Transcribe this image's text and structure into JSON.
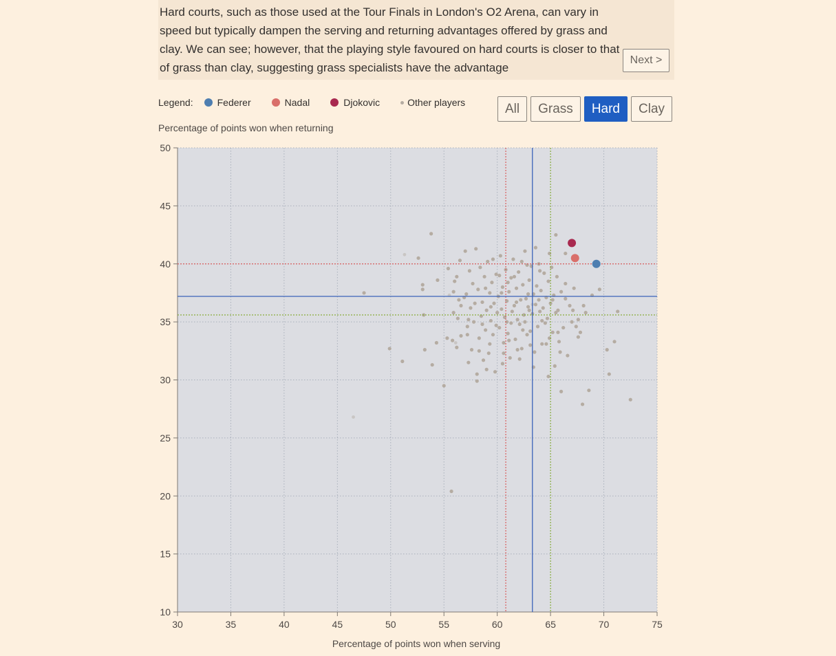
{
  "story": {
    "text": "Hard courts, such as those used at the Tour Finals in London's O2 Arena, can vary in speed but typically dampen the serving and returning advantages offered by grass and clay. We can see; however, that the playing style favoured on hard courts is closer to that of grass than clay, suggesting grass specialists have the advantage",
    "next_label": "Next >"
  },
  "legend": {
    "title": "Legend:",
    "items": [
      {
        "label": "Federer",
        "color": "#4e7eb0"
      },
      {
        "label": "Nadal",
        "color": "#d96f6a"
      },
      {
        "label": "Djokovic",
        "color": "#a8294f"
      },
      {
        "label": "Other players",
        "color": "#b5aca2"
      }
    ]
  },
  "filters": [
    {
      "label": "All",
      "active": false
    },
    {
      "label": "Grass",
      "active": false
    },
    {
      "label": "Hard",
      "active": true
    },
    {
      "label": "Clay",
      "active": false
    }
  ],
  "chart_data": {
    "type": "scatter",
    "xlabel": "Percentage of points won when serving",
    "ylabel": "Percentage of points won when returning",
    "xlim": [
      30,
      75
    ],
    "ylim": [
      10,
      50
    ],
    "xticks": [
      30,
      35,
      40,
      45,
      50,
      55,
      60,
      65,
      70,
      75
    ],
    "yticks": [
      10,
      15,
      20,
      25,
      30,
      35,
      40,
      45,
      50
    ],
    "grid": true,
    "plot_background": "#dcdde2",
    "reference_lines": [
      {
        "orientation": "vertical",
        "value": 60.8,
        "color": "#d95d5d",
        "style": "dotted"
      },
      {
        "orientation": "vertical",
        "value": 63.3,
        "color": "#3a62b8",
        "style": "solid"
      },
      {
        "orientation": "vertical",
        "value": 65.0,
        "color": "#88ad3b",
        "style": "dotted"
      },
      {
        "orientation": "horizontal",
        "value": 40.0,
        "color": "#d95d5d",
        "style": "dotted"
      },
      {
        "orientation": "horizontal",
        "value": 37.2,
        "color": "#3a62b8",
        "style": "solid"
      },
      {
        "orientation": "horizontal",
        "value": 35.6,
        "color": "#88ad3b",
        "style": "dotted"
      }
    ],
    "highlighted": [
      {
        "name": "Federer",
        "x": 69.3,
        "y": 40.0,
        "color": "#4e7eb0"
      },
      {
        "name": "Nadal",
        "x": 67.3,
        "y": 40.5,
        "color": "#d96f6a"
      },
      {
        "name": "Djokovic",
        "x": 67.0,
        "y": 41.8,
        "color": "#a8294f"
      }
    ],
    "other_players": {
      "color": "#b5aca2",
      "points": [
        [
          47.5,
          37.5
        ],
        [
          49.9,
          32.7
        ],
        [
          51.1,
          31.6
        ],
        [
          52.6,
          40.5
        ],
        [
          53.0,
          38.2
        ],
        [
          53.0,
          37.8
        ],
        [
          53.1,
          35.6
        ],
        [
          53.2,
          32.6
        ],
        [
          53.8,
          42.6
        ],
        [
          53.9,
          31.3
        ],
        [
          54.3,
          33.2
        ],
        [
          54.4,
          38.6
        ],
        [
          55.0,
          29.5
        ],
        [
          55.3,
          33.6
        ],
        [
          55.4,
          39.6
        ],
        [
          55.7,
          20.4
        ],
        [
          55.8,
          33.4
        ],
        [
          55.9,
          35.8
        ],
        [
          56.0,
          38.5
        ],
        [
          56.2,
          32.8
        ],
        [
          56.3,
          35.3
        ],
        [
          56.4,
          36.9
        ],
        [
          56.5,
          40.3
        ],
        [
          56.6,
          33.8
        ],
        [
          56.9,
          37.1
        ],
        [
          57.0,
          41.1
        ],
        [
          57.2,
          34.6
        ],
        [
          57.3,
          31.5
        ],
        [
          57.4,
          39.4
        ],
        [
          57.5,
          36.2
        ],
        [
          57.6,
          32.6
        ],
        [
          57.7,
          38.3
        ],
        [
          57.8,
          35.0
        ],
        [
          58.0,
          41.3
        ],
        [
          58.1,
          30.5
        ],
        [
          58.2,
          37.8
        ],
        [
          58.3,
          33.6
        ],
        [
          58.4,
          39.7
        ],
        [
          58.5,
          35.5
        ],
        [
          58.6,
          36.7
        ],
        [
          58.7,
          31.7
        ],
        [
          58.8,
          38.9
        ],
        [
          58.9,
          34.3
        ],
        [
          59.0,
          36.0
        ],
        [
          59.1,
          40.2
        ],
        [
          59.2,
          32.3
        ],
        [
          59.3,
          37.5
        ],
        [
          59.4,
          35.1
        ],
        [
          59.5,
          38.4
        ],
        [
          59.6,
          33.9
        ],
        [
          59.7,
          36.6
        ],
        [
          59.8,
          30.7
        ],
        [
          59.9,
          39.1
        ],
        [
          60.0,
          35.8
        ],
        [
          60.1,
          37.2
        ],
        [
          60.2,
          34.5
        ],
        [
          60.3,
          40.7
        ],
        [
          60.4,
          36.1
        ],
        [
          60.5,
          38.0
        ],
        [
          60.6,
          33.2
        ],
        [
          60.7,
          35.4
        ],
        [
          60.8,
          39.5
        ],
        [
          60.9,
          36.8
        ],
        [
          61.0,
          34.0
        ],
        [
          61.1,
          37.6
        ],
        [
          61.2,
          31.9
        ],
        [
          61.3,
          38.8
        ],
        [
          61.4,
          35.9
        ],
        [
          61.5,
          40.4
        ],
        [
          61.6,
          36.4
        ],
        [
          61.7,
          33.5
        ],
        [
          61.8,
          37.9
        ],
        [
          61.9,
          35.2
        ],
        [
          62.0,
          39.3
        ],
        [
          62.1,
          34.8
        ],
        [
          62.2,
          36.9
        ],
        [
          62.3,
          32.7
        ],
        [
          62.4,
          38.2
        ],
        [
          62.5,
          35.6
        ],
        [
          62.6,
          41.1
        ],
        [
          62.7,
          37.0
        ],
        [
          62.8,
          33.9
        ],
        [
          62.9,
          36.3
        ],
        [
          63.0,
          38.6
        ],
        [
          63.1,
          34.2
        ],
        [
          63.2,
          39.8
        ],
        [
          63.3,
          35.7
        ],
        [
          63.4,
          37.4
        ],
        [
          63.5,
          32.4
        ],
        [
          63.6,
          36.5
        ],
        [
          63.7,
          38.1
        ],
        [
          63.8,
          34.6
        ],
        [
          63.9,
          40.0
        ],
        [
          64.0,
          35.9
        ],
        [
          64.1,
          37.7
        ],
        [
          64.2,
          33.1
        ],
        [
          64.3,
          36.2
        ],
        [
          64.4,
          39.2
        ],
        [
          64.5,
          34.9
        ],
        [
          64.6,
          37.1
        ],
        [
          64.7,
          35.3
        ],
        [
          64.8,
          38.5
        ],
        [
          64.9,
          33.6
        ],
        [
          65.0,
          36.6
        ],
        [
          65.1,
          39.7
        ],
        [
          65.2,
          34.1
        ],
        [
          65.3,
          37.3
        ],
        [
          65.4,
          31.2
        ],
        [
          65.5,
          35.8
        ],
        [
          65.6,
          38.9
        ],
        [
          65.7,
          36.0
        ],
        [
          65.8,
          33.3
        ],
        [
          66.0,
          37.6
        ],
        [
          66.2,
          34.5
        ],
        [
          66.4,
          38.3
        ],
        [
          66.6,
          32.1
        ],
        [
          66.8,
          36.4
        ],
        [
          67.0,
          35.0
        ],
        [
          67.2,
          37.9
        ],
        [
          67.4,
          34.6
        ],
        [
          67.6,
          33.7
        ],
        [
          67.8,
          34.1
        ],
        [
          68.0,
          27.9
        ],
        [
          68.3,
          35.8
        ],
        [
          68.6,
          29.1
        ],
        [
          68.9,
          37.3
        ],
        [
          69.6,
          37.8
        ],
        [
          70.3,
          32.6
        ],
        [
          70.5,
          30.5
        ],
        [
          71.0,
          33.3
        ],
        [
          71.3,
          35.9
        ],
        [
          72.5,
          28.3
        ],
        [
          66.0,
          29.0
        ],
        [
          64.8,
          30.3
        ],
        [
          65.9,
          32.4
        ],
        [
          60.5,
          31.4
        ],
        [
          62.1,
          31.8
        ],
        [
          63.4,
          31.1
        ],
        [
          59.0,
          30.9
        ],
        [
          58.1,
          29.9
        ],
        [
          61.3,
          34.9
        ],
        [
          62.6,
          35.0
        ],
        [
          63.0,
          36.0
        ],
        [
          60.9,
          35.0
        ],
        [
          61.6,
          38.9
        ],
        [
          62.3,
          40.2
        ],
        [
          61.0,
          38.4
        ],
        [
          60.2,
          39.0
        ],
        [
          59.6,
          40.4
        ],
        [
          62.8,
          39.9
        ],
        [
          63.6,
          41.4
        ],
        [
          64.0,
          39.4
        ],
        [
          64.9,
          40.9
        ],
        [
          66.4,
          40.9
        ],
        [
          65.5,
          42.5
        ],
        [
          63.9,
          36.9
        ],
        [
          62.9,
          37.4
        ],
        [
          61.8,
          36.7
        ],
        [
          60.4,
          37.5
        ],
        [
          59.4,
          36.3
        ],
        [
          58.9,
          37.9
        ],
        [
          57.9,
          36.6
        ],
        [
          57.1,
          37.4
        ],
        [
          56.6,
          36.4
        ],
        [
          55.9,
          37.6
        ],
        [
          56.2,
          38.9
        ],
        [
          57.3,
          35.2
        ],
        [
          58.6,
          34.8
        ],
        [
          59.9,
          34.7
        ],
        [
          61.1,
          33.4
        ],
        [
          62.4,
          34.3
        ],
        [
          64.2,
          35.1
        ],
        [
          65.2,
          36.9
        ],
        [
          66.4,
          37.0
        ],
        [
          67.1,
          36.0
        ],
        [
          67.6,
          35.2
        ],
        [
          68.1,
          36.4
        ],
        [
          65.7,
          34.1
        ],
        [
          64.6,
          33.1
        ],
        [
          63.1,
          33.0
        ],
        [
          61.9,
          32.6
        ],
        [
          60.6,
          32.3
        ],
        [
          59.3,
          33.1
        ],
        [
          58.3,
          32.5
        ],
        [
          57.2,
          33.9
        ]
      ]
    },
    "faded_points": [
      [
        46.5,
        26.8
      ],
      [
        51.3,
        40.8
      ],
      [
        56.1,
        33.2
      ],
      [
        63.3,
        36.5
      ],
      [
        55.5,
        37.3
      ]
    ]
  }
}
